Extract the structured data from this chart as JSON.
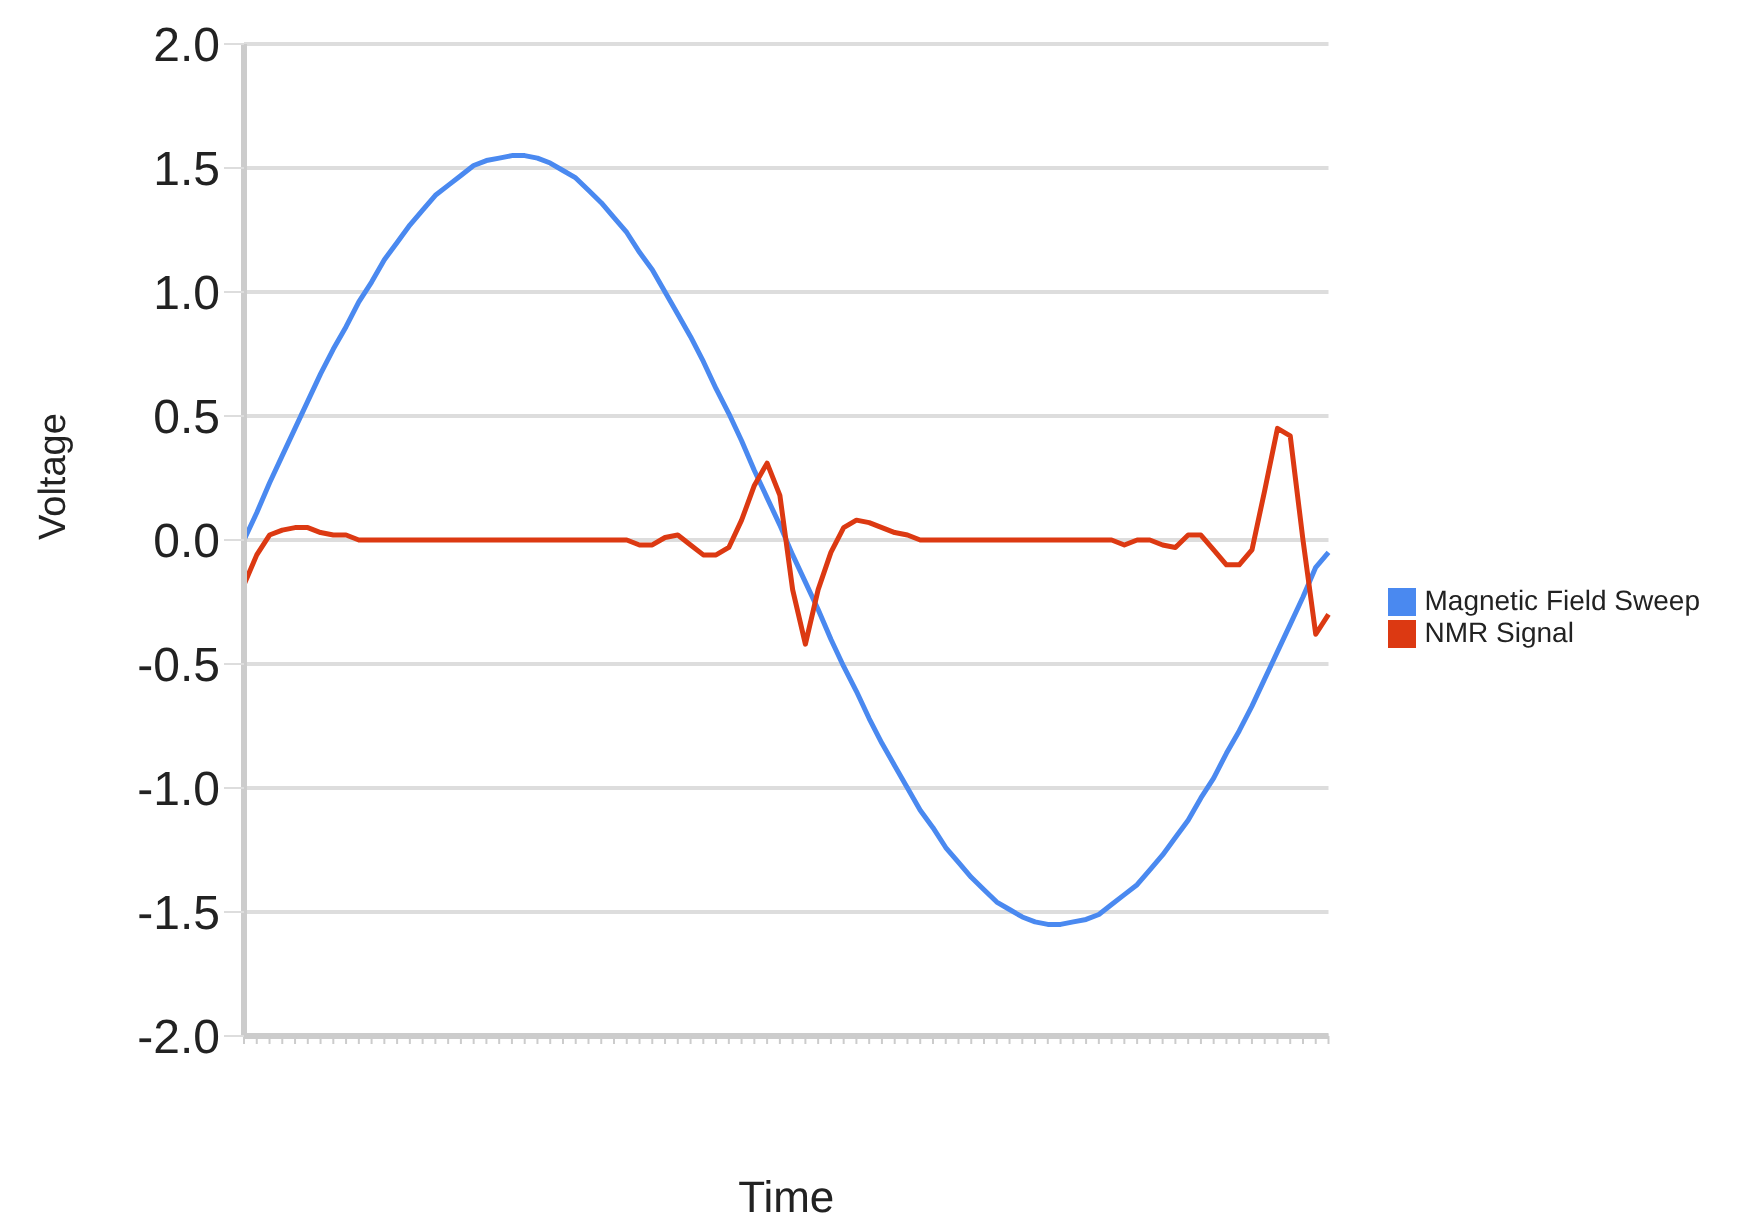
{
  "chart_data": {
    "type": "line",
    "xlabel": "Time",
    "ylabel": "Voltage",
    "categories": [
      null,
      null,
      null,
      null,
      null,
      null,
      null,
      null,
      null,
      null,
      null,
      null,
      null,
      null,
      null,
      null,
      null,
      null,
      null,
      null,
      null,
      null,
      null,
      null,
      null,
      null,
      null,
      null,
      null,
      null,
      null,
      null,
      null,
      null,
      null,
      null,
      null,
      null,
      null,
      null,
      null,
      null,
      null,
      null,
      null,
      null,
      null,
      null,
      null,
      null,
      null,
      null,
      null,
      null,
      null,
      null,
      null,
      null,
      null,
      null,
      null,
      null,
      null,
      null,
      null,
      null,
      null,
      null,
      null,
      null,
      null,
      null,
      null,
      null,
      null,
      null,
      null,
      null,
      null,
      null,
      null,
      null,
      null,
      null,
      null,
      null
    ],
    "series": [
      {
        "name": "Magnetic Field Sweep",
        "color": "#4a89f0",
        "values": [
          0,
          0.11,
          0.23,
          0.34,
          0.45,
          0.56,
          0.67,
          0.77,
          0.86,
          0.96,
          1.04,
          1.13,
          1.2,
          1.27,
          1.33,
          1.39,
          1.43,
          1.47,
          1.51,
          1.53,
          1.54,
          1.55,
          1.55,
          1.54,
          1.52,
          1.49,
          1.46,
          1.41,
          1.36,
          1.3,
          1.24,
          1.16,
          1.09,
          1.0,
          0.91,
          0.82,
          0.72,
          0.61,
          0.51,
          0.4,
          0.28,
          0.17,
          0.06,
          -0.06,
          -0.17,
          -0.28,
          -0.4,
          -0.51,
          -0.61,
          -0.72,
          -0.82,
          -0.91,
          -1.0,
          -1.09,
          -1.16,
          -1.24,
          -1.3,
          -1.36,
          -1.41,
          -1.46,
          -1.49,
          -1.52,
          -1.54,
          -1.55,
          -1.55,
          -1.54,
          -1.53,
          -1.51,
          -1.47,
          -1.43,
          -1.39,
          -1.33,
          -1.27,
          -1.2,
          -1.13,
          -1.04,
          -0.96,
          -0.86,
          -0.77,
          -0.67,
          -0.56,
          -0.45,
          -0.34,
          -0.23,
          -0.11,
          -0.05
        ]
      },
      {
        "name": "NMR Signal",
        "color": "#dc3912",
        "values": [
          -0.18,
          -0.06,
          0.02,
          0.04,
          0.05,
          0.05,
          0.03,
          0.02,
          0.02,
          0,
          0,
          0,
          0,
          0,
          0,
          0,
          0,
          0,
          0,
          0,
          0,
          0,
          0,
          0,
          0,
          0,
          0,
          0,
          0,
          0,
          0,
          -0.02,
          -0.02,
          0.01,
          0.02,
          -0.02,
          -0.06,
          -0.06,
          -0.03,
          0.08,
          0.22,
          0.31,
          0.18,
          -0.2,
          -0.42,
          -0.2,
          -0.05,
          0.05,
          0.08,
          0.07,
          0.05,
          0.03,
          0.02,
          0,
          0,
          0,
          0,
          0,
          0,
          0,
          0,
          0,
          0,
          0,
          0,
          0,
          0,
          0,
          0,
          -0.02,
          0,
          0,
          -0.02,
          -0.03,
          0.02,
          0.02,
          -0.04,
          -0.1,
          -0.1,
          -0.04,
          0.2,
          0.45,
          0.42,
          0,
          -0.38,
          -0.3
        ]
      }
    ],
    "ylim": [
      -2,
      2
    ],
    "yticks": [
      {
        "value": -2,
        "label": "-2.0"
      },
      {
        "value": -1.5,
        "label": "-1.5"
      },
      {
        "value": -1,
        "label": "-1.0"
      },
      {
        "value": -0.5,
        "label": "-0.5"
      },
      {
        "value": 0,
        "label": "0.0"
      },
      {
        "value": 0.5,
        "label": "0.5"
      },
      {
        "value": 1,
        "label": "1.0"
      },
      {
        "value": 1.5,
        "label": "1.5"
      },
      {
        "value": 2,
        "label": "2.0"
      }
    ],
    "grid": "y",
    "legend": "right",
    "marker": "none",
    "line_style": "solid"
  }
}
